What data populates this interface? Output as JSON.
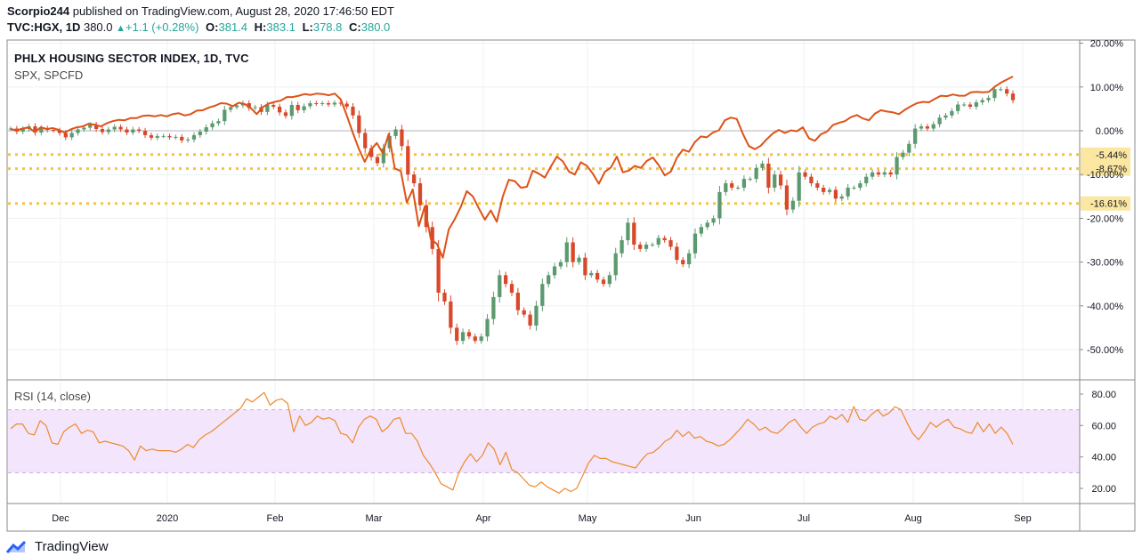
{
  "header": {
    "publisher": "Scorpio244",
    "published_text": "published on TradingView.com, August 28, 2020 17:46:50 EDT",
    "symbol": "TVC:HGX, 1D",
    "last": "380.0",
    "change": "+1.1 (+0.28%)",
    "open_label": "O:",
    "open": "381.4",
    "high_label": "H:",
    "high": "383.1",
    "low_label": "L:",
    "low": "378.8",
    "close_label": "C:",
    "close": "380.0"
  },
  "legend": {
    "main": "PHLX HOUSING SECTOR INDEX, 1D, TVC",
    "compare": "SPX, SPCFD",
    "rsi": "RSI (14, close)"
  },
  "footer": {
    "brand": "TradingView"
  },
  "colors": {
    "up": "#5b9a6f",
    "down": "#d9482b",
    "spx_line": "#de5217",
    "rsi_line": "#ee8a2a",
    "rsi_band": "#f3e5fb",
    "level_line": "#f4c542",
    "badge": "#fbe7a1"
  },
  "chart_data": [
    {
      "type": "candlestick",
      "title": "PHLX HOUSING SECTOR INDEX, 1D, TVC",
      "y_axis": "percent change",
      "y_ticks": [
        "20.00%",
        "10.00%",
        "0.00%",
        "-10.00%",
        "-20.00%",
        "-30.00%",
        "-40.00%",
        "-50.00%"
      ],
      "ylim": [
        -55,
        20
      ],
      "x_ticks": [
        "Dec",
        "2020",
        "Feb",
        "Mar",
        "Apr",
        "May",
        "Jun",
        "Jul",
        "Aug",
        "Sep"
      ],
      "level_lines": [
        {
          "value": -5.44,
          "label": "-5.44%"
        },
        {
          "value": -8.67,
          "label": "-8.67%"
        },
        {
          "value": -16.61,
          "label": "-16.61%"
        }
      ],
      "series": [
        {
          "name": "HGX",
          "values": [
            0.5,
            -0.2,
            0.4,
            1.0,
            -0.4,
            0.6,
            0.2,
            0.1,
            -0.5,
            -1.5,
            -0.5,
            0.3,
            0.7,
            1.4,
            0.4,
            -0.3,
            0.3,
            0.9,
            0.3,
            -0.4,
            0.3,
            0.0,
            -1.0,
            -1.6,
            -1.2,
            -1.2,
            -1.5,
            -1.4,
            -2.2,
            -2.0,
            -1.0,
            -0.2,
            0.8,
            1.7,
            2.2,
            4.8,
            5.4,
            5.8,
            6.3,
            5.2,
            5.4,
            4.3,
            5.9,
            5.5,
            4.2,
            3.4,
            5.9,
            4.7,
            5.6,
            6.3,
            6.2,
            6.3,
            6.0,
            6.4,
            6.2,
            5.5,
            3.5,
            -0.5,
            -4.0,
            -6.0,
            -7.4,
            -4.0,
            -1.2,
            0.3,
            -3.5,
            -10.0,
            -12.0,
            -17.0,
            -22.0,
            -27.0,
            -37.0,
            -39.0,
            -45.0,
            -48.0,
            -46.0,
            -47.0,
            -48.0,
            -47.0,
            -43.0,
            -38.0,
            -33.0,
            -35.0,
            -37.0,
            -41.0,
            -42.0,
            -44.5,
            -40.0,
            -35.0,
            -33.0,
            -31.0,
            -30.0,
            -25.5,
            -30.0,
            -29.0,
            -33.0,
            -32.5,
            -34.0,
            -35.0,
            -33.0,
            -28.0,
            -25.0,
            -21.0,
            -26.0,
            -27.0,
            -26.0,
            -26.0,
            -24.5,
            -25.0,
            -26.5,
            -29.5,
            -30.5,
            -28.0,
            -23.5,
            -22.0,
            -21.0,
            -20.0,
            -14.0,
            -12.0,
            -13.0,
            -13.0,
            -11.0,
            -11.0,
            -8.5,
            -7.5,
            -13.0,
            -10.0,
            -12.5,
            -18.0,
            -16.0,
            -9.5,
            -10.5,
            -12.0,
            -13.0,
            -14.0,
            -13.5,
            -15.5,
            -15.0,
            -13.0,
            -13.0,
            -12.0,
            -10.5,
            -9.5,
            -10.0,
            -9.5,
            -10.0,
            -6.0,
            -5.0,
            -3.0,
            0.5,
            1.0,
            0.5,
            1.5,
            3.0,
            3.5,
            4.5,
            6.0,
            6.0,
            5.5,
            6.5,
            7.0,
            7.5,
            9.5,
            9.5,
            8.5,
            7.0
          ],
          "note": "daily closes in percent change since first bar"
        },
        {
          "name": "SPX",
          "values": [
            0.4,
            0.1,
            0.5,
            0.8,
            -0.3,
            0.8,
            0.4,
            0.6,
            0.2,
            -0.4,
            0.3,
            0.8,
            1.0,
            1.6,
            1.4,
            1.0,
            1.7,
            2.2,
            2.5,
            2.4,
            2.9,
            2.9,
            3.4,
            3.5,
            3.3,
            3.6,
            3.3,
            3.8,
            4.0,
            3.5,
            3.8,
            4.6,
            4.7,
            5.3,
            5.7,
            6.3,
            6.2,
            5.6,
            6.4,
            6.1,
            5.2,
            3.8,
            5.4,
            6.2,
            6.6,
            6.9,
            7.7,
            7.7,
            8.0,
            8.4,
            8.2,
            8.5,
            8.4,
            8.1,
            8.5,
            7.2,
            3.5,
            -0.4,
            -4.1,
            -7.1,
            -4.3,
            -2.8,
            -5.1,
            -0.7,
            -8.6,
            -9.2,
            -16.4,
            -13.4,
            -21.8,
            -17.3,
            -24.8,
            -25.8,
            -29.0,
            -22.5,
            -20.2,
            -17.4,
            -13.8,
            -15.0,
            -17.7,
            -20.3,
            -18.2,
            -20.8,
            -15.0,
            -11.2,
            -11.5,
            -13.0,
            -12.8,
            -9.1,
            -9.8,
            -10.7,
            -8.2,
            -5.9,
            -7.0,
            -9.3,
            -10.0,
            -7.2,
            -8.0,
            -9.8,
            -12.1,
            -9.4,
            -8.4,
            -5.9,
            -9.5,
            -9.1,
            -8.0,
            -8.5,
            -6.9,
            -6.1,
            -7.9,
            -10.2,
            -9.3,
            -6.2,
            -4.3,
            -4.8,
            -2.6,
            -1.3,
            -1.5,
            -0.4,
            0.1,
            2.4,
            3.0,
            2.7,
            -0.7,
            -3.5,
            -4.2,
            -3.4,
            -1.9,
            -0.6,
            0.2,
            -0.5,
            0.1,
            -0.1,
            0.8,
            -1.7,
            -2.3,
            -0.8,
            -0.2,
            1.3,
            1.8,
            2.2,
            3.1,
            3.6,
            2.8,
            2.4,
            3.9,
            4.7,
            4.4,
            4.2,
            3.8,
            4.8,
            5.6,
            6.3,
            6.6,
            6.5,
            7.3,
            8.0,
            7.9,
            8.3,
            8.0,
            8.0,
            8.8,
            8.9,
            8.8,
            8.9,
            10.1,
            11.0,
            11.7,
            12.4
          ],
          "note": "compare line, percent change"
        }
      ]
    },
    {
      "type": "line",
      "title": "RSI (14, close)",
      "y_ticks": [
        "80.00",
        "60.00",
        "40.00",
        "20.00"
      ],
      "ylim": [
        10,
        90
      ],
      "band": [
        30,
        70
      ],
      "series": [
        {
          "name": "RSI",
          "values": [
            58,
            61,
            61,
            55,
            54,
            63,
            60,
            49,
            48,
            56,
            59,
            61,
            55,
            57,
            56,
            49,
            50,
            49,
            48,
            47,
            44,
            38,
            47,
            44,
            45,
            44,
            44,
            44,
            43,
            45,
            48,
            46,
            51,
            54,
            56,
            59,
            62,
            65,
            68,
            71,
            77,
            75,
            78,
            81,
            73,
            76,
            77,
            74,
            56,
            66,
            60,
            62,
            66,
            64,
            65,
            63,
            55,
            54,
            49,
            59,
            64,
            66,
            64,
            56,
            59,
            64,
            65,
            55,
            55,
            50,
            41,
            36,
            30,
            23,
            21,
            19,
            30,
            37,
            42,
            37,
            41,
            49,
            45,
            35,
            43,
            32,
            30,
            26,
            22,
            21,
            24,
            21,
            19,
            17,
            20,
            18,
            20,
            28,
            36,
            41,
            39,
            39,
            37,
            36,
            35,
            34,
            33,
            38,
            42,
            43,
            46,
            50,
            52,
            57,
            53,
            56,
            52,
            53,
            50,
            49,
            47,
            48,
            51,
            55,
            59,
            64,
            61,
            57,
            59,
            56,
            55,
            58,
            62,
            64,
            59,
            55,
            59,
            61,
            62,
            66,
            64,
            67,
            62,
            72,
            64,
            63,
            67,
            70,
            66,
            68,
            72,
            70,
            62,
            55,
            51,
            56,
            62,
            59,
            62,
            64,
            59,
            58,
            56,
            55,
            62,
            56,
            61,
            55,
            59,
            55,
            48
          ]
        }
      ]
    }
  ]
}
